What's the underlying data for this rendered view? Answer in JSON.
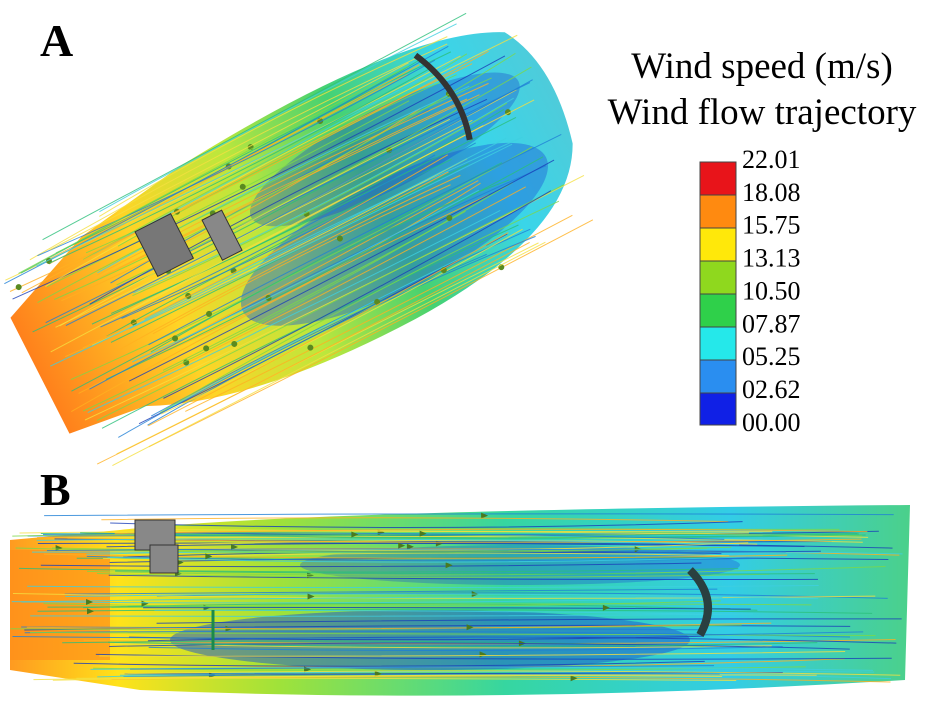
{
  "panels": [
    {
      "label": "A"
    },
    {
      "label": "B"
    }
  ],
  "legend": {
    "title_lines": [
      "Wind speed (m/s)",
      "Wind flow trajectory"
    ],
    "ticks": [
      "22.01",
      "18.08",
      "15.75",
      "13.13",
      "10.50",
      "07.87",
      "05.25",
      "02.62",
      "00.00"
    ]
  }
}
